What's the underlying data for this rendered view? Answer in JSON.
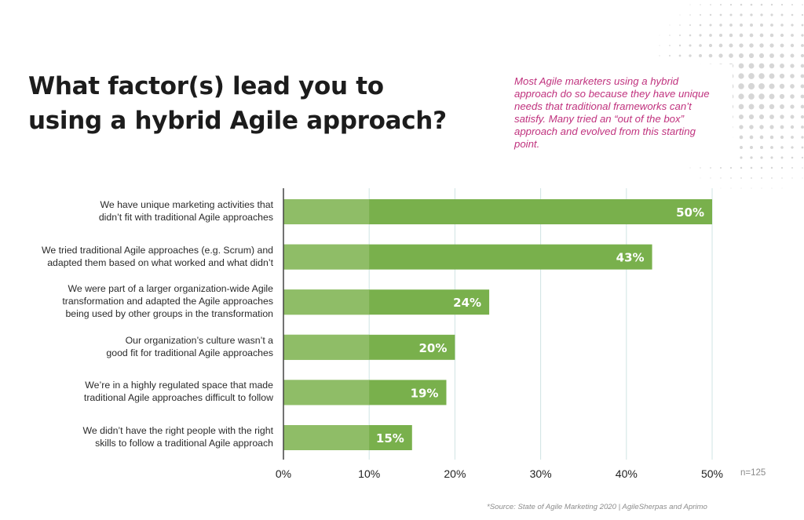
{
  "title": "What factor(s) lead you to\nusing a hybrid Agile approach?",
  "callout": "Most Agile marketers using a hybrid approach do so because they have unique needs that traditional frameworks can’t satisfy. Many tried an “out of the box” approach and evolved from this starting point.",
  "chart_data": {
    "type": "bar",
    "orientation": "horizontal",
    "categories": [
      "We have unique marketing activities that\ndidn’t fit with traditional Agile approaches",
      "We tried traditional Agile approaches (e.g. Scrum) and\nadapted them based on what worked and what didn’t",
      "We were part of a larger organization-wide Agile\ntransformation and adapted the Agile approaches\nbeing used by other groups in the transformation",
      "Our organization’s culture wasn’t a\ngood fit for traditional Agile approaches",
      "We’re in a highly regulated space that made\ntraditional Agile approaches difficult to follow",
      "We didn’t have the right people with the right\nskills to follow a traditional Agile approach"
    ],
    "values": [
      50,
      43,
      24,
      20,
      19,
      15
    ],
    "value_labels": [
      "50%",
      "43%",
      "24%",
      "20%",
      "19%",
      "15%"
    ],
    "xlim": [
      0,
      50
    ],
    "xticks": [
      0,
      10,
      20,
      30,
      40,
      50
    ],
    "xtick_labels": [
      "0%",
      "10%",
      "20%",
      "30%",
      "40%",
      "50%"
    ],
    "grid": true,
    "title": "What factor(s) lead you to using a hybrid Agile approach?",
    "xlabel": "",
    "ylabel": ""
  },
  "n_note": "n=125",
  "source": "*Source: State of Agile Marketing 2020 | AgileSherpas and Aprimo",
  "colors": {
    "bar": "#79b04c",
    "bar_head": "#93bf6c",
    "grid": "#cfe4e3",
    "axis": "#444444",
    "callout_text": "#c0327e"
  }
}
